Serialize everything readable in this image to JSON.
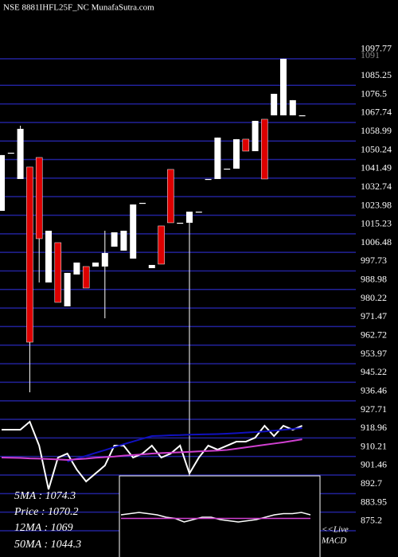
{
  "chart_data": {
    "type": "candlestick",
    "title": "NSE 8881IHFL25F_NC MunafaSutra.com",
    "categories": [
      null,
      null,
      null,
      null,
      null,
      null,
      null,
      null,
      null,
      null,
      null,
      null,
      null,
      null,
      null,
      null,
      null,
      null,
      null,
      null,
      null,
      null,
      null,
      null,
      null,
      null,
      null,
      null,
      null,
      null,
      null,
      null,
      null
    ],
    "open": [
      1026.07,
      1053.47,
      1041.08,
      1046.72,
      1051.22,
      992.28,
      1011.05,
      981.02,
      996.04,
      999.79,
      999.79,
      999.79,
      1009.18,
      1007.3,
      1003.54,
      1029.82,
      999.04,
      1018.94,
      1045.59,
      1020.44,
      1020.44,
      1025.69,
      1041.08,
      1041.08,
      1045.96,
      1045.96,
      1059.85,
      1054.22,
      1069.24,
      1071.12,
      1071.12,
      1071.12,
      1071.12
    ],
    "high": [
      1052.35,
      1053.47,
      1066.2,
      1046.72,
      1051.22,
      1016.68,
      1011.05,
      996.79,
      1001.67,
      999.79,
      1001.67,
      1016.68,
      1015.93,
      1016.68,
      1029.07,
      1029.82,
      1000.54,
      1018.94,
      1045.59,
      1020.44,
      1025.69,
      1025.69,
      1041.08,
      1060.61,
      1045.96,
      1059.85,
      1059.85,
      1068.49,
      1069.24,
      1081.25,
      1097.77,
      1078.25,
      1071.12
    ],
    "low": [
      1026.07,
      1053.47,
      1041.08,
      940.48,
      992.28,
      992.28,
      982.9,
      981.02,
      996.04,
      989.65,
      999.79,
      975.39,
      1009.18,
      1007.3,
      1003.54,
      1029.82,
      999.04,
      1000.92,
      1020.44,
      1020.44,
      901.06,
      1025.69,
      1041.08,
      1041.08,
      1045.96,
      1045.96,
      1054.22,
      1054.22,
      1041.08,
      1071.12,
      1071.12,
      1071.12,
      1071.12
    ],
    "close": [
      1052.35,
      1053.47,
      1064.73,
      964.13,
      1012.93,
      1016.68,
      982.9,
      996.79,
      1001.67,
      989.65,
      1001.67,
      1006.17,
      1015.93,
      1016.68,
      1029.07,
      1029.82,
      1000.54,
      1000.92,
      1020.44,
      1020.44,
      1025.69,
      1025.69,
      1041.08,
      1060.61,
      1045.96,
      1059.85,
      1054.22,
      1068.49,
      1041.08,
      1081.25,
      1097.77,
      1078.25,
      1071.12
    ],
    "up_color": "#ffffff",
    "down_color": "#dd0000",
    "overlays": [
      {
        "color": "#ffffff",
        "values": [
          922.83,
          922.83,
          922.83,
          926.59,
          915.33,
          894.68,
          909.69,
          911.57,
          904.06,
          898.43,
          902.19,
          905.94,
          915.33,
          915.33,
          909.69,
          911.57,
          915.33,
          909.69,
          911.57,
          915.33,
          902.19,
          909.69,
          915.33,
          913.45,
          915.33,
          917.2,
          917.2,
          919.08,
          924.71,
          919.83,
          924.71,
          922.83,
          924.71
        ]
      },
      {
        "color": "#1010c0",
        "values": [
          null,
          null,
          null,
          null,
          null,
          null,
          null,
          907.82,
          909.2,
          910.5,
          911.9,
          913.2,
          914.6,
          916.0,
          917.3,
          918.6,
          919.83,
          920.0,
          920.2,
          920.3,
          920.5,
          920.6,
          920.7,
          920.8,
          920.96,
          921.2,
          921.5,
          921.7,
          922.0,
          922.4,
          922.8,
          923.2,
          923.58
        ]
      },
      {
        "color": "#d040d0",
        "values": [
          909.7,
          909.6,
          909.5,
          909.3,
          909.2,
          909.0,
          908.8,
          908.6,
          908.9,
          909.2,
          909.6,
          909.9,
          910.2,
          910.6,
          910.9,
          911.2,
          911.6,
          911.8,
          912.0,
          912.2,
          912.4,
          912.6,
          912.8,
          913.0,
          913.3,
          913.9,
          914.5,
          915.1,
          915.7,
          916.3,
          916.9,
          917.6,
          918.3
        ]
      }
    ],
    "ylim": [
      862.8,
      1125.5
    ],
    "yticks": [
      1097.77,
      1085.25,
      1076.5,
      1067.74,
      1058.99,
      1050.24,
      1041.49,
      1032.74,
      1023.98,
      1015.23,
      1006.48,
      997.73,
      988.98,
      980.22,
      971.47,
      962.72,
      953.97,
      945.22,
      936.46,
      927.71,
      918.96,
      910.21,
      901.46,
      892.7,
      883.95,
      875.2
    ],
    "grid": true,
    "grid_color": "#22229a",
    "annotations": [
      "1091"
    ],
    "stats": [
      "5MA : 1074.3",
      "Price : 1070.2",
      "12MA : 1069",
      "50MA : 1044.3"
    ],
    "macd": {
      "label": [
        "<<Live",
        "MACD"
      ],
      "ylim": [
        -1,
        1
      ],
      "series": [
        {
          "color": "#ffffff",
          "values": [
            0.1,
            0.15,
            0.2,
            0.15,
            0.1,
            0.0,
            -0.05,
            -0.2,
            -0.1,
            0.0,
            0.0,
            -0.1,
            -0.15,
            -0.2,
            -0.15,
            -0.1,
            0.0,
            0.1,
            0.15,
            0.15,
            0.2,
            0.1
          ]
        },
        {
          "color": "#d040d0",
          "values": [
            -0.05,
            -0.05,
            -0.05,
            -0.05,
            -0.05,
            -0.05,
            -0.05,
            -0.05,
            -0.05,
            -0.05,
            -0.05,
            -0.05,
            -0.05,
            -0.05,
            -0.05,
            -0.05,
            -0.05,
            -0.05,
            -0.05,
            -0.05,
            -0.05,
            -0.05
          ]
        }
      ]
    }
  }
}
